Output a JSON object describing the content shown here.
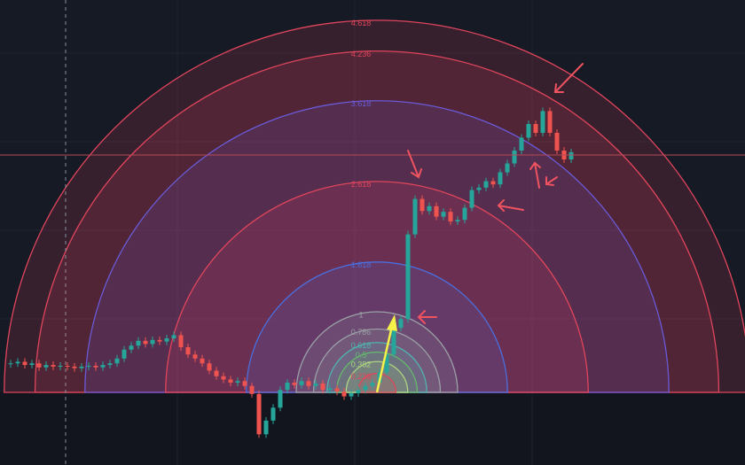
{
  "chart_data": {
    "type": "fib_speed_arcs",
    "levels": [
      4.618,
      4.236,
      3.618,
      2.618,
      1.618,
      1,
      0.786,
      0.618,
      0.5,
      0.382,
      0.236
    ],
    "level_colors": [
      "#e0455c",
      "#e0455c",
      "#6a5ad8",
      "#e0455c",
      "#4a6fe0",
      "#9aa0a6",
      "#9aa0a6",
      "#4fb3b0",
      "#66bb6a",
      "#aed581",
      "#e0455c"
    ],
    "up_color": "#26a69a",
    "down_color": "#ef5350",
    "values": [
      0.36,
      0.38,
      0.34,
      0.36,
      0.31,
      0.34,
      0.32,
      0.33,
      0.32,
      0.3,
      0.32,
      0.33,
      0.31,
      0.34,
      0.36,
      0.42,
      0.53,
      0.58,
      0.64,
      0.6,
      0.65,
      0.63,
      0.67,
      0.71,
      0.56,
      0.47,
      0.42,
      0.36,
      0.27,
      0.2,
      0.16,
      0.12,
      0.14,
      0.08,
      -0.02,
      -0.52,
      -0.35,
      -0.19,
      0.03,
      0.12,
      0.09,
      0.14,
      0.08,
      0.11,
      0.03,
      0.05,
      0.01,
      -0.05,
      -0.01,
      0.03,
      0.08,
      0.12,
      0.25,
      0.47,
      0.8,
      0.91,
      1.96,
      2.4,
      2.25,
      2.31,
      2.18,
      2.24,
      2.12,
      2.14,
      2.29,
      2.51,
      2.54,
      2.62,
      2.58,
      2.73,
      2.84,
      3.0,
      3.16,
      3.33,
      3.22,
      3.49,
      3.22,
      3.0,
      2.89,
      2.98
    ]
  }
}
